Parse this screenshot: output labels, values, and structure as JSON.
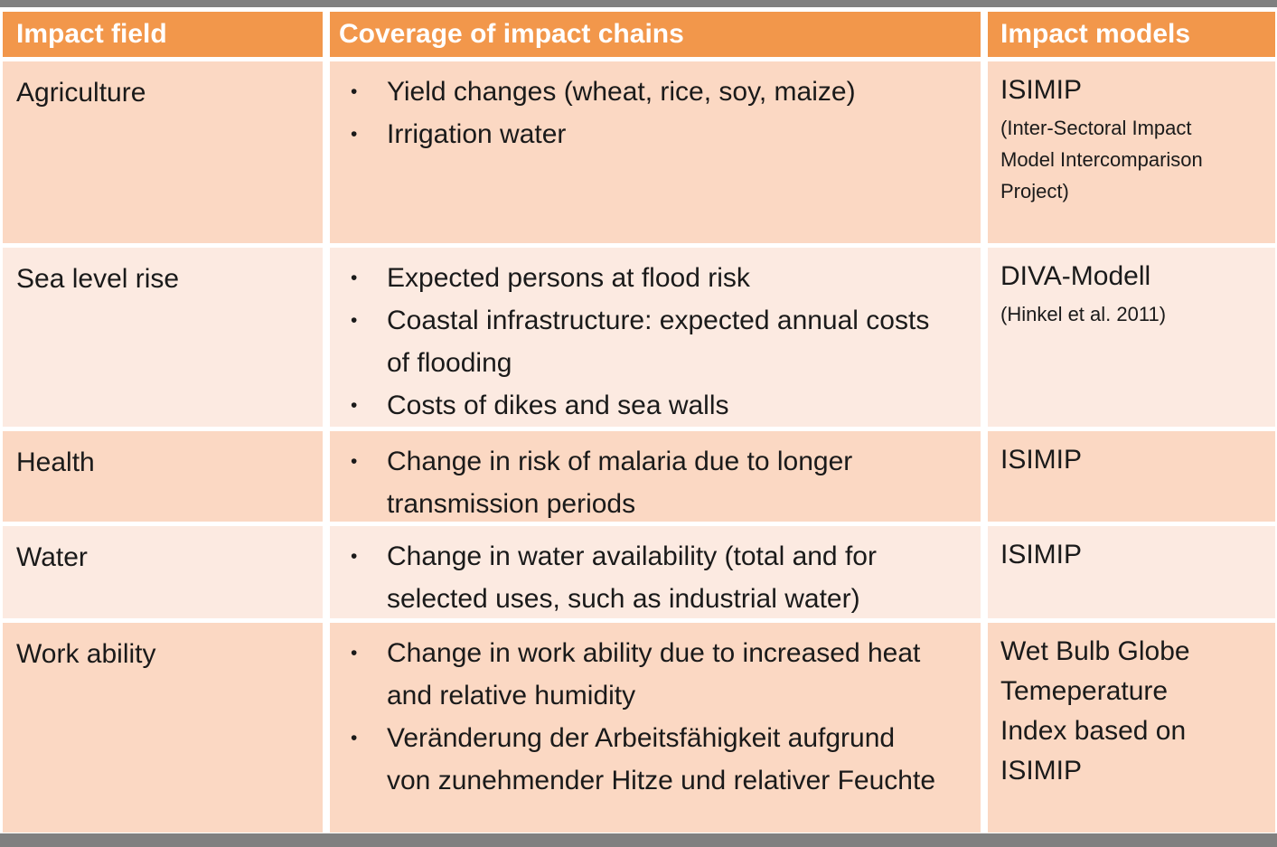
{
  "palette": {
    "header_bg": "#F2974B",
    "row_dark": "#FBD8C3",
    "row_light": "#FCEAE1",
    "bar_gray": "#808080",
    "header_text": "#FFFFFF",
    "body_text": "#1A1A1A"
  },
  "icons": {
    "bullet": "•"
  },
  "table": {
    "columns": [
      {
        "label": "Impact field"
      },
      {
        "label": "Coverage of impact chains"
      },
      {
        "label": "Impact models"
      }
    ],
    "rows": [
      {
        "field": "Agriculture",
        "chains": [
          "Yield changes (wheat, rice, soy, maize)",
          "Irrigation water"
        ],
        "model": "ISIMIP",
        "model_note": "(Inter-Sectoral Impact Model Intercomparison Project)"
      },
      {
        "field": "Sea level rise",
        "chains": [
          "Expected persons at flood risk",
          "Coastal infrastructure: expected annual costs of flooding",
          "Costs of dikes and sea walls"
        ],
        "model": "DIVA-Modell",
        "model_note": "(Hinkel et al. 2011)"
      },
      {
        "field": "Health",
        "chains": [
          "Change in risk of malaria due to longer transmission periods"
        ],
        "model": "ISIMIP"
      },
      {
        "field": "Water",
        "chains": [
          "Change in water availability (total and for selected uses, such as industrial water)"
        ],
        "model": "ISIMIP"
      },
      {
        "field": "Work ability",
        "chains": [
          "Change in work ability due to increased heat and relative humidity",
          "Veränderung der Arbeitsfähigkeit aufgrund von zunehmender Hitze und relativer Feuchte"
        ],
        "model": "Wet Bulb Globe Temeperature Index based on ISIMIP"
      }
    ]
  }
}
